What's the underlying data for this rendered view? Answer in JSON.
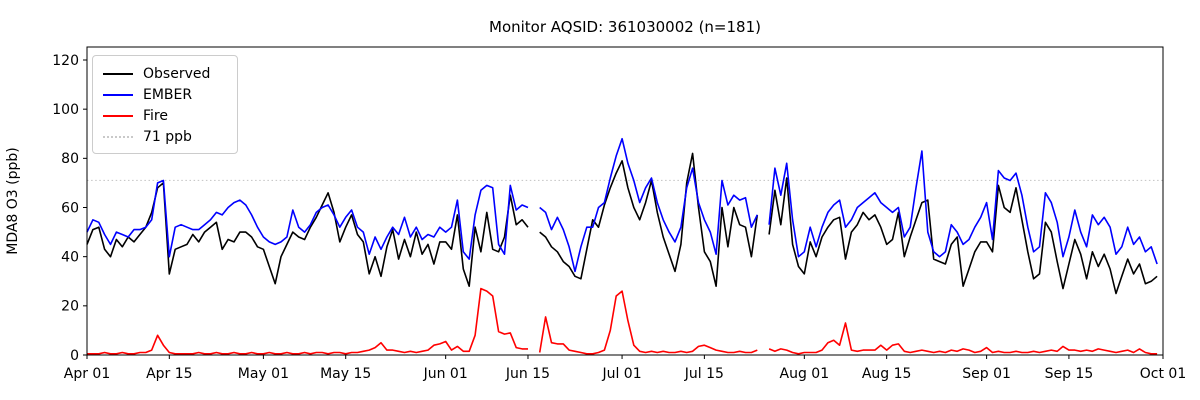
{
  "title": "Monitor AQSID: 361030002 (n=181)",
  "ylabel": "MDA8 O3 (ppb)",
  "legend": {
    "items": [
      {
        "label": "Observed",
        "color": "#000000",
        "dash": false
      },
      {
        "label": "EMBER",
        "color": "#0000ff",
        "dash": false
      },
      {
        "label": "Fire",
        "color": "#ff0000",
        "dash": false
      },
      {
        "label": "71 ppb",
        "color": "#c9c9c9",
        "dash": true
      }
    ]
  },
  "chart_data": {
    "type": "line",
    "title": "Monitor AQSID: 361030002 (n=181)",
    "xlabel": "",
    "ylabel": "MDA8 O3 (ppb)",
    "x_start_date": "Apr 01",
    "x_end_date": "Oct 01",
    "n_points_label": 181,
    "x_day_span": 183,
    "ylim": [
      0,
      125
    ],
    "yticks": [
      0,
      20,
      40,
      60,
      80,
      100,
      120
    ],
    "xticks": [
      {
        "day": 0,
        "label": "Apr 01"
      },
      {
        "day": 14,
        "label": "Apr 15"
      },
      {
        "day": 30,
        "label": "May 01"
      },
      {
        "day": 44,
        "label": "May 15"
      },
      {
        "day": 61,
        "label": "Jun 01"
      },
      {
        "day": 75,
        "label": "Jun 15"
      },
      {
        "day": 91,
        "label": "Jul 01"
      },
      {
        "day": 105,
        "label": "Jul 15"
      },
      {
        "day": 122,
        "label": "Aug 01"
      },
      {
        "day": 136,
        "label": "Aug 15"
      },
      {
        "day": 153,
        "label": "Sep 01"
      },
      {
        "day": 167,
        "label": "Sep 15"
      },
      {
        "day": 183,
        "label": "Oct 01"
      }
    ],
    "reference_line": {
      "value": 71,
      "label": "71 ppb",
      "color": "#c9c9c9",
      "style": "dotted"
    },
    "missing_days_note": "null entries = missing observations (Jun 16, Jul 25)",
    "series": [
      {
        "name": "Observed",
        "color": "#000000",
        "width": 1.6,
        "values": [
          45,
          51,
          52,
          43,
          40,
          47,
          44,
          48,
          46,
          49,
          52,
          58,
          68,
          70,
          33,
          43,
          44,
          45,
          49,
          46,
          50,
          52,
          54,
          43,
          47,
          46,
          50,
          50,
          48,
          44,
          43,
          36,
          29,
          40,
          45,
          50,
          48,
          47,
          52,
          56,
          61,
          66,
          58,
          46,
          52,
          57,
          49,
          46,
          33,
          40,
          32,
          44,
          51,
          39,
          47,
          40,
          50,
          41,
          45,
          37,
          46,
          46,
          43,
          57,
          35,
          28,
          52,
          42,
          58,
          43,
          42,
          48,
          65,
          53,
          55,
          52,
          null,
          50,
          48,
          44,
          42,
          38,
          36,
          32,
          31,
          43,
          55,
          52,
          61,
          68,
          74,
          79,
          68,
          60,
          55,
          62,
          71,
          58,
          48,
          41,
          34,
          45,
          70,
          82,
          60,
          42,
          38,
          28,
          60,
          44,
          60,
          53,
          52,
          40,
          57,
          null,
          49,
          67,
          53,
          72,
          45,
          36,
          33,
          46,
          40,
          48,
          52,
          55,
          56,
          39,
          50,
          53,
          58,
          55,
          57,
          52,
          45,
          47,
          58,
          40,
          48,
          55,
          62,
          63,
          39,
          38,
          37,
          45,
          48,
          28,
          35,
          42,
          46,
          46,
          42,
          69,
          60,
          58,
          68,
          55,
          42,
          31,
          33,
          54,
          50,
          38,
          27,
          37,
          47,
          41,
          31,
          42,
          36,
          41,
          35,
          25,
          32,
          39,
          33,
          37,
          29,
          30,
          32
        ]
      },
      {
        "name": "EMBER",
        "color": "#0000ff",
        "width": 1.6,
        "values": [
          50,
          55,
          54,
          49,
          45,
          50,
          49,
          48,
          51,
          51,
          52,
          55,
          70,
          71,
          40,
          52,
          53,
          52,
          51,
          51,
          53,
          55,
          58,
          57,
          60,
          62,
          63,
          61,
          57,
          52,
          48,
          46,
          45,
          46,
          48,
          59,
          52,
          50,
          53,
          58,
          60,
          61,
          57,
          52,
          56,
          59,
          52,
          50,
          41,
          48,
          43,
          48,
          52,
          49,
          56,
          48,
          52,
          47,
          49,
          48,
          52,
          50,
          52,
          63,
          42,
          39,
          57,
          67,
          69,
          68,
          45,
          41,
          69,
          59,
          61,
          60,
          null,
          60,
          58,
          51,
          56,
          51,
          44,
          34,
          44,
          52,
          52,
          60,
          62,
          72,
          81,
          88,
          78,
          71,
          62,
          68,
          72,
          62,
          55,
          50,
          46,
          52,
          68,
          76,
          62,
          55,
          50,
          41,
          71,
          61,
          65,
          63,
          64,
          52,
          57,
          null,
          53,
          76,
          65,
          78,
          55,
          40,
          42,
          52,
          44,
          52,
          58,
          61,
          63,
          52,
          55,
          60,
          62,
          64,
          66,
          62,
          60,
          58,
          60,
          48,
          52,
          68,
          83,
          50,
          42,
          40,
          42,
          53,
          50,
          45,
          47,
          52,
          56,
          62,
          47,
          75,
          72,
          71,
          74,
          65,
          52,
          42,
          44,
          66,
          62,
          54,
          40,
          48,
          59,
          50,
          44,
          57,
          53,
          56,
          52,
          41,
          44,
          52,
          45,
          48,
          42,
          44,
          37
        ]
      },
      {
        "name": "Fire",
        "color": "#ff0000",
        "width": 1.6,
        "values": [
          0.5,
          0.5,
          0.5,
          1,
          0.5,
          0.5,
          1,
          0.5,
          0.5,
          1,
          1,
          2,
          8,
          4,
          1,
          0.5,
          0.5,
          0.5,
          0.5,
          1,
          0.5,
          0.5,
          1,
          0.5,
          0.5,
          1,
          0.5,
          0.5,
          1,
          0.5,
          0.5,
          1,
          0.5,
          0.5,
          1,
          0.5,
          0.5,
          1,
          0.5,
          1,
          1,
          0.5,
          1,
          1,
          0.5,
          1,
          1,
          1.5,
          2,
          3,
          5,
          2,
          2,
          1.5,
          1,
          1.5,
          1,
          1.5,
          2,
          4,
          4.5,
          5.5,
          2,
          3.5,
          1.5,
          1.5,
          8,
          27,
          26,
          24,
          9.5,
          8.5,
          9,
          3,
          2.5,
          2.5,
          null,
          1,
          15.5,
          5,
          4.5,
          4.5,
          2,
          1.5,
          1,
          0.5,
          0.5,
          1,
          2,
          10,
          24,
          26,
          14,
          4,
          1.5,
          1,
          1.5,
          1,
          1.5,
          1,
          1,
          1.5,
          1,
          1.5,
          3.5,
          4,
          3,
          2,
          1.5,
          1,
          1,
          1.5,
          1,
          1,
          2,
          null,
          2.5,
          1.5,
          2.5,
          2,
          1,
          0.5,
          1,
          1,
          1,
          2,
          5,
          6,
          4,
          13,
          2,
          1.5,
          2,
          2,
          2,
          4,
          2,
          4,
          4.5,
          1.5,
          1,
          1.5,
          2,
          1.5,
          1,
          1.5,
          1,
          2,
          1.5,
          2.5,
          2,
          1,
          1.5,
          3,
          1,
          1.5,
          1,
          1,
          1.5,
          1,
          1,
          1.5,
          1,
          1.5,
          2,
          1.5,
          3.5,
          2,
          2,
          1.5,
          2,
          1.5,
          2.5,
          2,
          1.5,
          1,
          1.5,
          2,
          1,
          2.5,
          1,
          0.5,
          0.5
        ]
      }
    ]
  },
  "axis": {
    "color": "#000000",
    "tick_font_px": 14
  }
}
